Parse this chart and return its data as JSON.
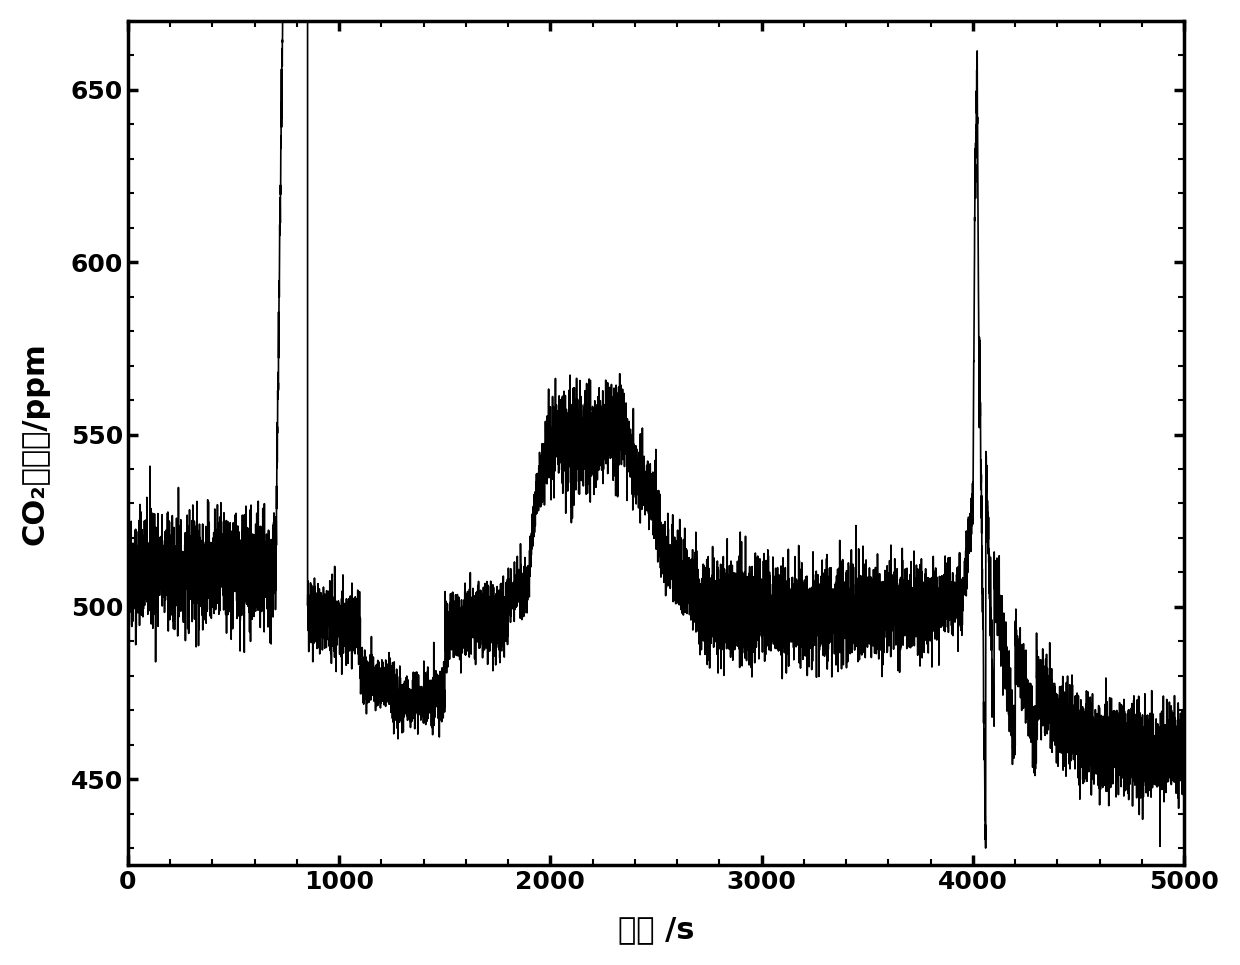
{
  "title": "",
  "xlabel": "时间 /s",
  "ylabel": "CO₂生成量/ppm",
  "xlim": [
    0,
    5000
  ],
  "ylim": [
    425,
    670
  ],
  "xticks": [
    0,
    1000,
    2000,
    3000,
    4000,
    5000
  ],
  "yticks": [
    450,
    500,
    550,
    600,
    650
  ],
  "line_color": "#000000",
  "line_width": 1.2,
  "background_color": "#ffffff",
  "noise_seed": 42,
  "segments": [
    {
      "t_start": 0,
      "t_end": 700,
      "base": 510,
      "noise": 8,
      "trend": 0
    },
    {
      "t_start": 700,
      "t_end": 850,
      "base": 510,
      "noise": 5,
      "trend": 5
    },
    {
      "t_start": 850,
      "t_end": 1100,
      "base": 498,
      "noise": 5,
      "trend": -0.015
    },
    {
      "t_start": 1100,
      "t_end": 1250,
      "base": 480,
      "noise": 4,
      "trend": -0.02
    },
    {
      "t_start": 1250,
      "t_end": 1500,
      "base": 472,
      "noise": 4,
      "trend": 0.01
    },
    {
      "t_start": 1500,
      "t_end": 1800,
      "base": 495,
      "noise": 5,
      "trend": 0.005
    },
    {
      "t_start": 1800,
      "t_end": 1900,
      "base": 503,
      "noise": 4,
      "trend": 0.04
    },
    {
      "t_start": 1900,
      "t_end": 1950,
      "base": 515,
      "noise": 4,
      "trend": 0.5
    },
    {
      "t_start": 1950,
      "t_end": 2000,
      "base": 535,
      "noise": 5,
      "trend": 0.3
    },
    {
      "t_start": 2000,
      "t_end": 2050,
      "base": 547,
      "noise": 6,
      "trend": 0.1
    },
    {
      "t_start": 2050,
      "t_end": 2200,
      "base": 548,
      "noise": 8,
      "trend": 0.01
    },
    {
      "t_start": 2200,
      "t_end": 2350,
      "base": 550,
      "noise": 7,
      "trend": 0.02
    },
    {
      "t_start": 2350,
      "t_end": 2400,
      "base": 548,
      "noise": 5,
      "trend": -0.1
    },
    {
      "t_start": 2400,
      "t_end": 2500,
      "base": 540,
      "noise": 5,
      "trend": -0.1
    },
    {
      "t_start": 2500,
      "t_end": 2550,
      "base": 526,
      "noise": 5,
      "trend": -0.3
    },
    {
      "t_start": 2550,
      "t_end": 2600,
      "base": 515,
      "noise": 5,
      "trend": -0.1
    },
    {
      "t_start": 2600,
      "t_end": 2700,
      "base": 508,
      "noise": 6,
      "trend": -0.02
    },
    {
      "t_start": 2700,
      "t_end": 3000,
      "base": 500,
      "noise": 7,
      "trend": 0
    },
    {
      "t_start": 3000,
      "t_end": 3500,
      "base": 498,
      "noise": 7,
      "trend": 0.002
    },
    {
      "t_start": 3500,
      "t_end": 3800,
      "base": 499,
      "noise": 6,
      "trend": 0.002
    },
    {
      "t_start": 3800,
      "t_end": 3950,
      "base": 501,
      "noise": 5,
      "trend": 0.003
    },
    {
      "t_start": 3950,
      "t_end": 4000,
      "base": 503,
      "noise": 4,
      "trend": 0.5
    },
    {
      "t_start": 4000,
      "t_end": 4010,
      "base": 530,
      "noise": 3,
      "trend": 10
    },
    {
      "t_start": 4010,
      "t_end": 4020,
      "base": 630,
      "noise": 5,
      "trend": 2
    },
    {
      "t_start": 4020,
      "t_end": 4030,
      "base": 655,
      "noise": 3,
      "trend": -10
    },
    {
      "t_start": 4030,
      "t_end": 4060,
      "base": 580,
      "noise": 5,
      "trend": -5
    },
    {
      "t_start": 4060,
      "t_end": 4100,
      "base": 545,
      "noise": 5,
      "trend": -2
    },
    {
      "t_start": 4100,
      "t_end": 4200,
      "base": 510,
      "noise": 5,
      "trend": -0.5
    },
    {
      "t_start": 4200,
      "t_end": 4300,
      "base": 490,
      "noise": 5,
      "trend": -0.3
    },
    {
      "t_start": 4300,
      "t_end": 4400,
      "base": 477,
      "noise": 6,
      "trend": -0.1
    },
    {
      "t_start": 4400,
      "t_end": 4500,
      "base": 468,
      "noise": 7,
      "trend": -0.05
    },
    {
      "t_start": 4500,
      "t_end": 4600,
      "base": 462,
      "noise": 7,
      "trend": -0.02
    },
    {
      "t_start": 4600,
      "t_end": 4700,
      "base": 460,
      "noise": 7,
      "trend": 0
    },
    {
      "t_start": 4700,
      "t_end": 4800,
      "base": 459,
      "noise": 7,
      "trend": 0
    },
    {
      "t_start": 4800,
      "t_end": 5000,
      "base": 458,
      "noise": 7,
      "trend": 0
    }
  ]
}
